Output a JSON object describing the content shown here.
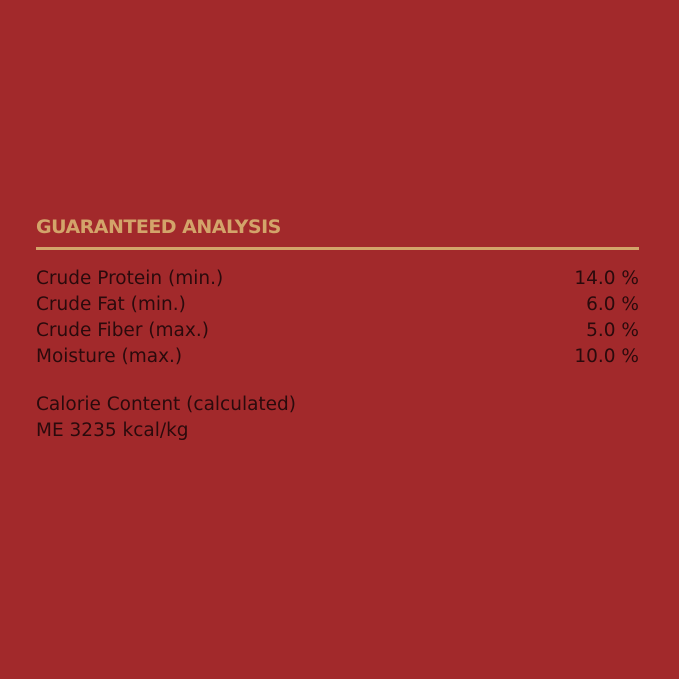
{
  "title": "GUARANTEED ANALYSIS",
  "rows": [
    {
      "label": "Crude Protein (min.)",
      "value": "14.0 %"
    },
    {
      "label": "Crude Fat (min.)",
      "value": "6.0 %"
    },
    {
      "label": "Crude Fiber (max.)",
      "value": "5.0 %"
    },
    {
      "label": "Moisture (max.)",
      "value": "10.0 %"
    }
  ],
  "calorie": {
    "heading": "Calorie Content (calculated)",
    "value": "ME 3235 kcal/kg"
  },
  "colors": {
    "background": "#a2292b",
    "accent": "#d3a46a",
    "text": "#2a0a0c"
  }
}
